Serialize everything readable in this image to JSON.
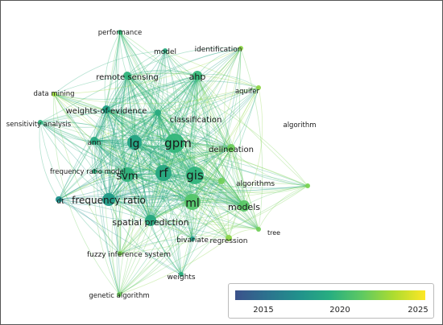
{
  "nodes": [
    {
      "id": "gpm",
      "label": "gpm",
      "size": 5,
      "color": "#33b67a"
    },
    {
      "id": "gis",
      "label": "gis",
      "size": 4.5,
      "color": "#2fb47c"
    },
    {
      "id": "rf",
      "label": "rf",
      "size": 4.5,
      "color": "#26a67f"
    },
    {
      "id": "ml",
      "label": "ml",
      "size": 4,
      "color": "#54c56a"
    },
    {
      "id": "lg",
      "label": "lg",
      "size": 3.6,
      "color": "#23a383"
    },
    {
      "id": "svm",
      "label": "svm",
      "size": 3.6,
      "color": "#30b27b"
    },
    {
      "id": "frequency-ratio",
      "label": "frequency ratio",
      "size": 3.4,
      "color": "#1f9a86"
    },
    {
      "id": "spatial-prediction",
      "label": "spatial prediction",
      "size": 2.8,
      "color": "#27a880"
    },
    {
      "id": "models",
      "label": "models",
      "size": 2.8,
      "color": "#5ac766"
    },
    {
      "id": "ahp",
      "label": "ahp",
      "size": 2.4,
      "color": "#35b778"
    },
    {
      "id": "delineation",
      "label": "delineation",
      "size": 2.2,
      "color": "#6ccd5b"
    },
    {
      "id": "ann",
      "label": "ann",
      "size": 2.0,
      "color": "#25a680"
    },
    {
      "id": "remote-sensing",
      "label": "remote sensing",
      "size": 2.0,
      "color": "#30b27b"
    },
    {
      "id": "weights-of-evidence",
      "label": "weights-of-evidence",
      "size": 1.9,
      "color": "#20a084"
    },
    {
      "id": "classification",
      "label": "classification",
      "size": 1.7,
      "color": "#2aab7f"
    },
    {
      "id": "algorithms",
      "label": "algorithms",
      "size": 1.5,
      "color": "#70cf58"
    },
    {
      "id": "bivariate",
      "label": "bivariate",
      "size": 1.4,
      "color": "#1f9a86"
    },
    {
      "id": "regression",
      "label": "regression",
      "size": 1.5,
      "color": "#8dd64a"
    },
    {
      "id": "dt",
      "label": "dt",
      "size": 1.3,
      "color": "#1a8f8a"
    },
    {
      "id": "frequency-ratio-model",
      "label": "frequency ratio model",
      "size": 1.3,
      "color": "#2cac7d"
    },
    {
      "id": "fuzzy-inference-system",
      "label": "fuzzy inference system",
      "size": 1.2,
      "color": "#7ad352"
    },
    {
      "id": "weights",
      "label": "weights",
      "size": 1.2,
      "color": "#2cae7d"
    },
    {
      "id": "genetic-algorithm",
      "label": "genetic algorithm",
      "size": 1.1,
      "color": "#6bcd5c"
    },
    {
      "id": "tree",
      "label": "tree",
      "size": 1.1,
      "color": "#70cf58"
    },
    {
      "id": "algorithm",
      "label": "algorithm",
      "size": 1.1,
      "color": "#7ad352"
    },
    {
      "id": "aquifer",
      "label": "aquifer",
      "size": 1.1,
      "color": "#8fd648"
    },
    {
      "id": "identification",
      "label": "identification",
      "size": 1.1,
      "color": "#8cd54a"
    },
    {
      "id": "model",
      "label": "model",
      "size": 1.2,
      "color": "#2aab7f"
    },
    {
      "id": "performance",
      "label": "performance",
      "size": 1.1,
      "color": "#35b778"
    },
    {
      "id": "data-mining",
      "label": "data mining",
      "size": 1.1,
      "color": "#9dd93f"
    },
    {
      "id": "sensitivity-analysis",
      "label": "sensitivity analysis",
      "size": 1.1,
      "color": "#2fb07c"
    }
  ],
  "legend": {
    "ticks": [
      "2015",
      "2020",
      "2025"
    ],
    "gradient": [
      "#3b518b",
      "#2c728e",
      "#21918c",
      "#28ae80",
      "#5ec962",
      "#addc30",
      "#fde725"
    ]
  }
}
